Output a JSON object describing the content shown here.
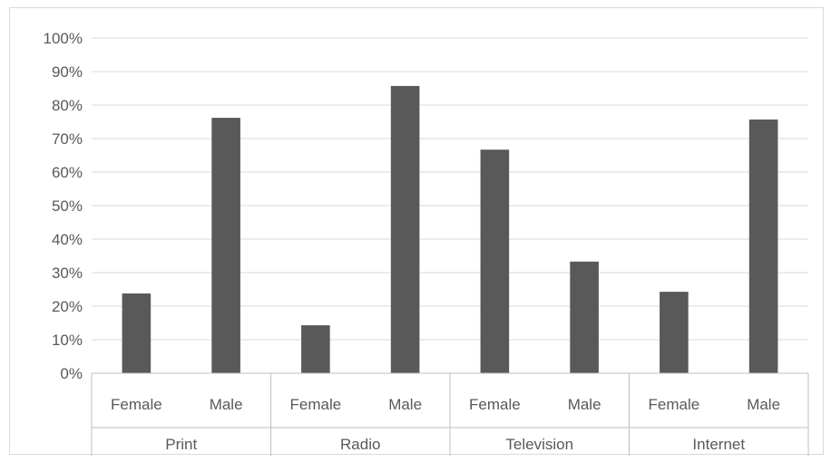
{
  "chart_data": {
    "type": "bar",
    "title": "",
    "xlabel": "",
    "ylabel": "",
    "ylim": [
      0,
      1
    ],
    "y_ticks": [
      "0%",
      "10%",
      "20%",
      "30%",
      "40%",
      "50%",
      "60%",
      "70%",
      "80%",
      "90%",
      "100%"
    ],
    "y_tick_values": [
      0,
      0.1,
      0.2,
      0.3,
      0.4,
      0.5,
      0.6,
      0.7,
      0.8,
      0.9,
      1.0
    ],
    "grid": true,
    "legend": "none",
    "groups": [
      "Print",
      "Radio",
      "Television",
      "Internet"
    ],
    "categories": [
      {
        "group": "Print",
        "label": "Female",
        "value": 0.238
      },
      {
        "group": "Print",
        "label": "Male",
        "value": 0.762
      },
      {
        "group": "Radio",
        "label": "Female",
        "value": 0.143
      },
      {
        "group": "Radio",
        "label": "Male",
        "value": 0.857
      },
      {
        "group": "Television",
        "label": "Female",
        "value": 0.667
      },
      {
        "group": "Television",
        "label": "Male",
        "value": 0.333
      },
      {
        "group": "Internet",
        "label": "Female",
        "value": 0.243
      },
      {
        "group": "Internet",
        "label": "Male",
        "value": 0.757
      }
    ],
    "colors": {
      "bar": "#595959",
      "grid": "#d9d9d9",
      "axis": "#bfbfbf",
      "text": "#595959"
    }
  }
}
